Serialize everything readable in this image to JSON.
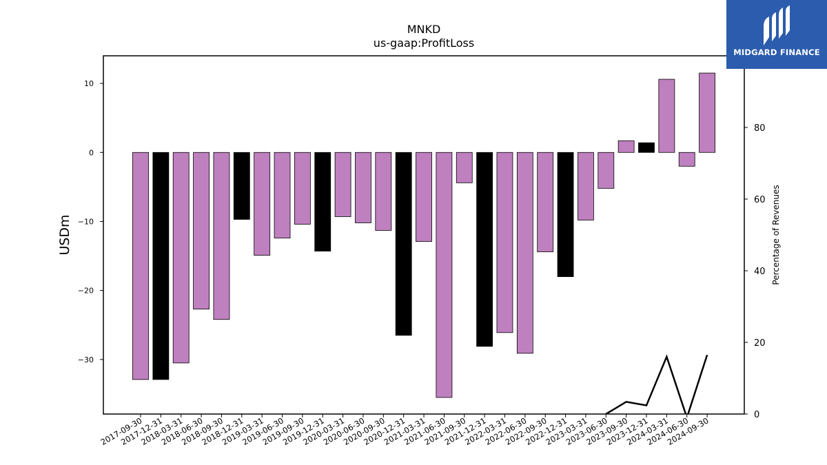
{
  "chart_data": {
    "type": "bar",
    "title": "MNKD",
    "subtitle": "us-gaap:ProfitLoss",
    "ylabel": "USDm",
    "y2label": "Percentage of Revenues",
    "ylim": [
      -37.9,
      14
    ],
    "y2lim": [
      0,
      100
    ],
    "yticks": [
      10,
      0,
      -10,
      -20,
      -30
    ],
    "y2ticks": [
      80,
      60,
      40,
      20,
      0
    ],
    "categories": [
      "2017-09-30",
      "2017-12-31",
      "2018-03-31",
      "2018-06-30",
      "2018-09-30",
      "2018-12-31",
      "2019-03-31",
      "2019-06-30",
      "2019-09-30",
      "2019-12-31",
      "2020-03-31",
      "2020-06-30",
      "2020-09-30",
      "2020-12-31",
      "2021-03-31",
      "2021-06-30",
      "2021-09-30",
      "2021-12-31",
      "2022-03-31",
      "2022-06-30",
      "2022-09-30",
      "2022-12-31",
      "2023-03-31",
      "2023-06-30",
      "2023-09-30",
      "2023-12-31",
      "2024-03-31",
      "2024-06-30",
      "2024-09-30"
    ],
    "values": [
      -32.9,
      -32.9,
      -30.5,
      -22.7,
      -24.2,
      -9.7,
      -14.9,
      -12.4,
      -10.4,
      -14.3,
      -9.3,
      -10.2,
      -11.3,
      -26.5,
      -12.9,
      -35.5,
      -4.4,
      -28.1,
      -26.1,
      -29.1,
      -14.4,
      -18.0,
      -9.8,
      -5.2,
      1.7,
      1.4,
      10.6,
      -2.0,
      11.5
    ],
    "bar_colors": [
      "#bf80bf",
      "#000000",
      "#bf80bf",
      "#bf80bf",
      "#bf80bf",
      "#000000",
      "#bf80bf",
      "#bf80bf",
      "#bf80bf",
      "#000000",
      "#bf80bf",
      "#bf80bf",
      "#bf80bf",
      "#000000",
      "#bf80bf",
      "#bf80bf",
      "#bf80bf",
      "#000000",
      "#bf80bf",
      "#bf80bf",
      "#bf80bf",
      "#000000",
      "#bf80bf",
      "#bf80bf",
      "#bf80bf",
      "#000000",
      "#bf80bf",
      "#bf80bf",
      "#bf80bf"
    ],
    "line_series": {
      "axis": "right",
      "color": "#000000",
      "points": [
        {
          "x": "2023-06-30",
          "y": 0.0
        },
        {
          "x": "2023-09-30",
          "y": 3.4
        },
        {
          "x": "2023-12-31",
          "y": 2.4
        },
        {
          "x": "2024-03-31",
          "y": 16.0
        },
        {
          "x": "2024-06-30",
          "y": -1.0
        },
        {
          "x": "2024-09-30",
          "y": 16.5
        }
      ]
    },
    "grid": false,
    "legend": "none"
  },
  "logo": {
    "text": "MIDGARD FINANCE",
    "background": "#2b5cad"
  }
}
